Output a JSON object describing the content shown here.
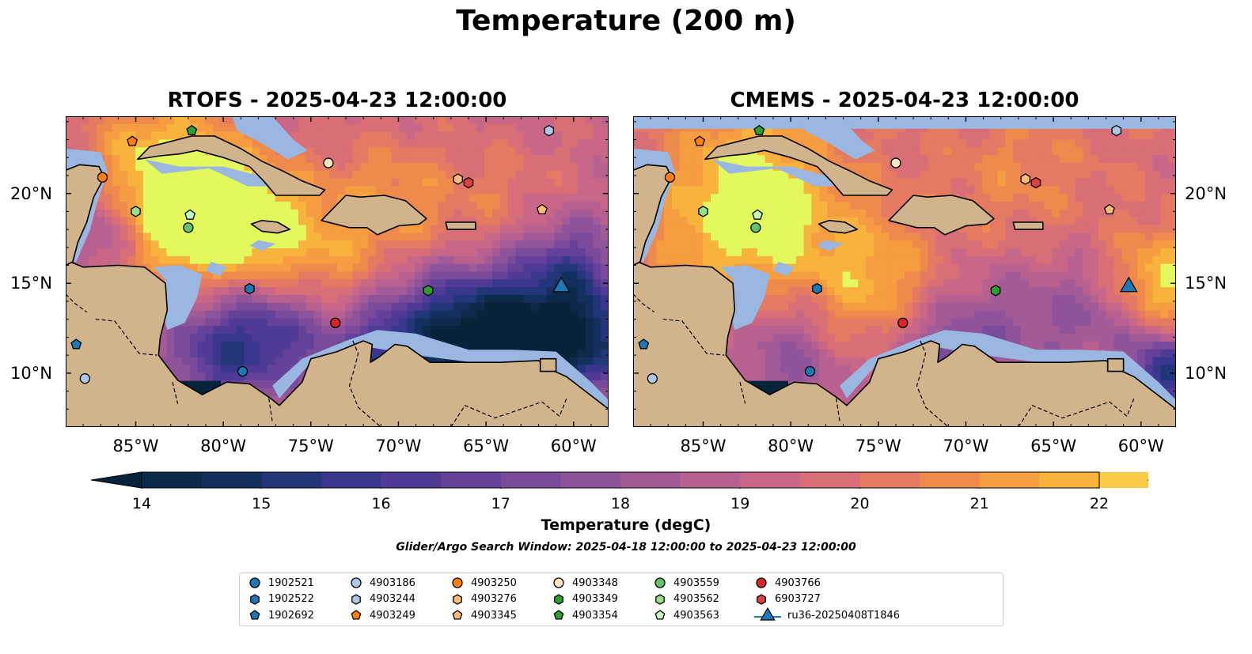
{
  "figure": {
    "title": "Temperature (200 m)",
    "search_window": "Glider/Argo Search Window: 2025-04-18 12:00:00 to 2025-04-23 12:00:00"
  },
  "panels": [
    {
      "title": "RTOFS - 2025-04-23 12:00:00"
    },
    {
      "title": "CMEMS - 2025-04-23 12:00:00"
    }
  ],
  "map": {
    "extent": {
      "lon": [
        -89,
        -58
      ],
      "lat": [
        7,
        24.3
      ]
    },
    "lon_ticks": [
      {
        "value": -85,
        "label": "85°W"
      },
      {
        "value": -80,
        "label": "80°W"
      },
      {
        "value": -75,
        "label": "75°W"
      },
      {
        "value": -70,
        "label": "70°W"
      },
      {
        "value": -65,
        "label": "65°W"
      },
      {
        "value": -60,
        "label": "60°W"
      }
    ],
    "lat_ticks": [
      {
        "value": 20,
        "label": "20°N"
      },
      {
        "value": 15,
        "label": "15°N"
      },
      {
        "value": 10,
        "label": "10°N"
      }
    ],
    "colors": {
      "land": "#d2b48c",
      "shelf": "#99b7e0",
      "deep": "#07233a"
    }
  },
  "colorbar": {
    "label": "Temperature (degC)",
    "min": 14,
    "max": 22,
    "step": 0.5,
    "ticks": [
      "14",
      "15",
      "16",
      "17",
      "18",
      "19",
      "20",
      "21",
      "22"
    ],
    "colors": [
      "#0c2a4a",
      "#13305f",
      "#23367a",
      "#39378e",
      "#4f3b95",
      "#64419a",
      "#7a4a9b",
      "#8f539a",
      "#a35b97",
      "#b86191",
      "#c96788",
      "#d86f77",
      "#e57a63",
      "#ef8a4d",
      "#f59d40",
      "#f8b33d",
      "#f7cb45",
      "#eee65a"
    ],
    "under_color": "#07233a",
    "over_color": "#e2f85c"
  },
  "legend": {
    "items": [
      {
        "label": "1902521",
        "marker": "circle",
        "color": "#1f77b4"
      },
      {
        "label": "1902522",
        "marker": "hexagon",
        "color": "#1f77b4"
      },
      {
        "label": "1902692",
        "marker": "pentagon",
        "color": "#1f77b4"
      },
      {
        "label": "4903186",
        "marker": "circle",
        "color": "#aec7e8"
      },
      {
        "label": "4903244",
        "marker": "hexagon",
        "color": "#aec7e8"
      },
      {
        "label": "4903249",
        "marker": "pentagon",
        "color": "#ff7f0e"
      },
      {
        "label": "4903250",
        "marker": "circle",
        "color": "#ff7f0e"
      },
      {
        "label": "4903276",
        "marker": "hexagon",
        "color": "#ffbb78"
      },
      {
        "label": "4903345",
        "marker": "pentagon",
        "color": "#ffbb78"
      },
      {
        "label": "4903348",
        "marker": "circle",
        "color": "#ffe4c4"
      },
      {
        "label": "4903349",
        "marker": "hexagon",
        "color": "#2ca02c"
      },
      {
        "label": "4903354",
        "marker": "pentagon",
        "color": "#2ca02c"
      },
      {
        "label": "4903559",
        "marker": "circle",
        "color": "#66c266"
      },
      {
        "label": "4903562",
        "marker": "hexagon",
        "color": "#98df8a"
      },
      {
        "label": "4903563",
        "marker": "pentagon",
        "color": "#c7f5b5"
      },
      {
        "label": "4903766",
        "marker": "circle",
        "color": "#d62728"
      },
      {
        "label": "6903727",
        "marker": "hexagon",
        "color": "#e04040"
      },
      {
        "label": "ru36-20250408T1846",
        "marker": "triangle",
        "color": "#1f77b4"
      }
    ]
  },
  "floats": [
    {
      "label": "1902521",
      "lon": -78.9,
      "lat": 10.1
    },
    {
      "label": "1902522",
      "lon": -78.5,
      "lat": 14.7
    },
    {
      "label": "1902692",
      "lon": -88.4,
      "lat": 11.6
    },
    {
      "label": "4903186",
      "lon": -87.9,
      "lat": 9.7
    },
    {
      "label": "4903244",
      "lon": -61.4,
      "lat": 23.5
    },
    {
      "label": "4903249",
      "lon": -85.2,
      "lat": 22.9
    },
    {
      "label": "4903250",
      "lon": -86.9,
      "lat": 20.9
    },
    {
      "label": "4903276",
      "lon": -66.6,
      "lat": 20.8
    },
    {
      "label": "4903345",
      "lon": -61.8,
      "lat": 19.1
    },
    {
      "label": "4903348",
      "lon": -74.0,
      "lat": 21.7
    },
    {
      "label": "4903349",
      "lon": -68.3,
      "lat": 14.6
    },
    {
      "label": "4903354",
      "lon": -81.8,
      "lat": 23.5
    },
    {
      "label": "4903559",
      "lon": -82.0,
      "lat": 18.1
    },
    {
      "label": "4903562",
      "lon": -85.0,
      "lat": 19.0
    },
    {
      "label": "4903563",
      "lon": -81.9,
      "lat": 18.8
    },
    {
      "label": "4903766",
      "lon": -73.6,
      "lat": 12.8
    },
    {
      "label": "6903727",
      "lon": -66.0,
      "lat": 20.6
    },
    {
      "label": "ru36-20250408T1846",
      "lon": -60.7,
      "lat": 14.8
    }
  ]
}
